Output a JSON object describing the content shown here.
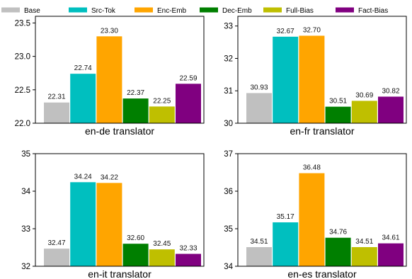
{
  "legend": [
    {
      "name": "Base",
      "color": "#c0c0c0"
    },
    {
      "name": "Src-Tok",
      "color": "#00bfbf"
    },
    {
      "name": "Enc-Emb",
      "color": "#ffa500"
    },
    {
      "name": "Dec-Emb",
      "color": "#007f00"
    },
    {
      "name": "Full-Bias",
      "color": "#bfbf00"
    },
    {
      "name": "Fact-Bias",
      "color": "#800080"
    }
  ],
  "chart_data": [
    {
      "type": "bar",
      "xlabel": "en-de translator",
      "ylim": [
        22.0,
        23.6
      ],
      "yticks": [
        "22.0",
        "22.5",
        "23.0",
        "23.5"
      ],
      "categories": [
        "Base",
        "Src-Tok",
        "Enc-Emb",
        "Dec-Emb",
        "Full-Bias",
        "Fact-Bias"
      ],
      "values": [
        22.31,
        22.74,
        23.3,
        22.37,
        22.25,
        22.59
      ],
      "labels": [
        "22.31",
        "22.74",
        "23.30",
        "22.37",
        "22.25",
        "22.59"
      ]
    },
    {
      "type": "bar",
      "xlabel": "en-fr translator",
      "ylim": [
        30,
        33.3
      ],
      "yticks": [
        "30",
        "31",
        "32",
        "33"
      ],
      "categories": [
        "Base",
        "Src-Tok",
        "Enc-Emb",
        "Dec-Emb",
        "Full-Bias",
        "Fact-Bias"
      ],
      "values": [
        30.93,
        32.67,
        32.7,
        30.51,
        30.69,
        30.82
      ],
      "labels": [
        "30.93",
        "32.67",
        "32.70",
        "30.51",
        "30.69",
        "30.82"
      ]
    },
    {
      "type": "bar",
      "xlabel": "en-it translator",
      "ylim": [
        32,
        35
      ],
      "yticks": [
        "32",
        "33",
        "34",
        "35"
      ],
      "categories": [
        "Base",
        "Src-Tok",
        "Enc-Emb",
        "Dec-Emb",
        "Full-Bias",
        "Fact-Bias"
      ],
      "values": [
        32.47,
        34.24,
        34.22,
        32.6,
        32.45,
        32.33
      ],
      "labels": [
        "32.47",
        "34.24",
        "34.22",
        "32.60",
        "32.45",
        "32.33"
      ]
    },
    {
      "type": "bar",
      "xlabel": "en-es translator",
      "ylim": [
        34,
        37
      ],
      "yticks": [
        "34",
        "35",
        "36",
        "37"
      ],
      "categories": [
        "Base",
        "Src-Tok",
        "Enc-Emb",
        "Dec-Emb",
        "Full-Bias",
        "Fact-Bias"
      ],
      "values": [
        34.51,
        35.17,
        36.48,
        34.76,
        34.51,
        34.61
      ],
      "labels": [
        "34.51",
        "35.17",
        "36.48",
        "34.76",
        "34.51",
        "34.61"
      ]
    }
  ]
}
